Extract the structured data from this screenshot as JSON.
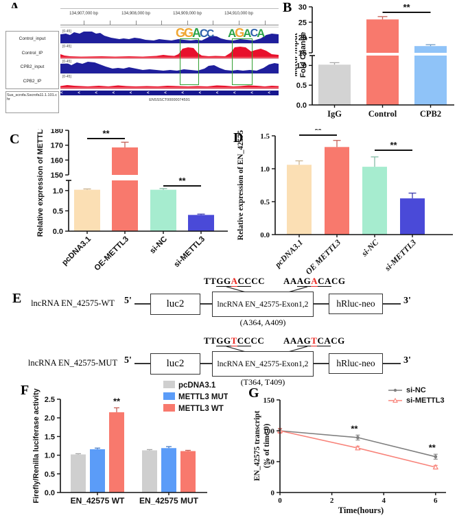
{
  "panels": {
    "a": "A",
    "b": "B",
    "c": "C",
    "d": "D",
    "e": "E",
    "f": "F",
    "g": "G"
  },
  "igv": {
    "ruler": [
      "134,907,000 bp",
      "134,908,000 bp",
      "134,909,000 bp",
      "134,910,000 bp"
    ],
    "tracks": [
      {
        "name": "Control_input",
        "range": "[0-45]",
        "color": "#1f1f9c"
      },
      {
        "name": "Control_IP",
        "range": "[0-45]",
        "color": "#e8102c"
      },
      {
        "name": "CPB2_input",
        "range": "[0-45]",
        "color": "#1f1f9c"
      },
      {
        "name": "CPB2_IP",
        "range": "[0-45]",
        "color": "#e8102c"
      }
    ],
    "genome_label": "Sus_scrofa.Sscrofa11.1.101.chr",
    "gene_id": "ENSSSCT00000074591",
    "logos": [
      {
        "letters": [
          {
            "ch": "G",
            "color": "#f0a733"
          },
          {
            "ch": "G",
            "color": "#f0a733"
          },
          {
            "ch": "A",
            "color": "#2ca349"
          },
          {
            "ch": "C",
            "color": "#2b5fa9"
          },
          {
            "ch": "C",
            "color": "#2b5fa9"
          }
        ]
      },
      {
        "letters": [
          {
            "ch": "A",
            "color": "#2ca349"
          },
          {
            "ch": "G",
            "color": "#f0a733"
          },
          {
            "ch": "A",
            "color": "#2ca349"
          },
          {
            "ch": "C",
            "color": "#2b5fa9"
          },
          {
            "ch": "A",
            "color": "#2ca349"
          }
        ]
      }
    ]
  },
  "chart_data": [
    {
      "id": "B",
      "type": "bar",
      "ylabel_lines": [
        "MeRIP/Input",
        "Fold Change"
      ],
      "categories": [
        "IgG",
        "Control",
        "CPB2"
      ],
      "values": [
        1.02,
        25.9,
        17.2
      ],
      "errors": [
        0.05,
        0.9,
        0.45
      ],
      "colors": [
        "#d3d3d3",
        "#f8796d",
        "#8fc3f8"
      ],
      "axis": {
        "segments": [
          {
            "range": [
              15,
              30
            ],
            "ticks": [
              "15",
              "20",
              "25",
              "30"
            ]
          },
          {
            "range": [
              0,
              1.25
            ],
            "ticks": [
              "0.0",
              "0.5",
              "1.0"
            ]
          }
        ]
      },
      "sig": [
        {
          "between": [
            "Control",
            "CPB2"
          ],
          "label": "**"
        }
      ]
    },
    {
      "id": "C",
      "type": "bar",
      "ylabel": "Relative expression of METTL3",
      "categories": [
        "pcDNA3.1",
        "OE-METTL3",
        "si-NC",
        "si-METTL3"
      ],
      "values": [
        1.02,
        168.5,
        1.02,
        0.4
      ],
      "errors": [
        0.02,
        3.5,
        0.03,
        0.02
      ],
      "colors": [
        "#fbdfb4",
        "#f8796d",
        "#a6eccf",
        "#4a4ad8"
      ],
      "axis": {
        "segments": [
          {
            "range": [
              150,
              180
            ],
            "ticks": [
              "150",
              "160",
              "170",
              "180"
            ]
          },
          {
            "range": [
              0,
              1.25
            ],
            "ticks": [
              "0.0",
              "0.5",
              "1.0"
            ]
          }
        ]
      },
      "sig": [
        {
          "between": [
            "pcDNA3.1",
            "OE-METTL3"
          ],
          "label": "**"
        },
        {
          "between": [
            "si-NC",
            "si-METTL3"
          ],
          "label": "**"
        }
      ]
    },
    {
      "id": "D",
      "type": "bar",
      "ylabel": "Relative expression of EN_42575",
      "categories": [
        "pcDNA3.1",
        "OE METTL3",
        "si-NC",
        "si-METTL3"
      ],
      "values": [
        1.06,
        1.33,
        1.03,
        0.55
      ],
      "errors": [
        0.06,
        0.1,
        0.15,
        0.08
      ],
      "colors": [
        "#fbdfb4",
        "#f8796d",
        "#a6eccf",
        "#4a4ad8"
      ],
      "axis": {
        "segments": [
          {
            "range": [
              0,
              1.5
            ],
            "ticks": [
              "0.0",
              "0.5",
              "1.0",
              "1.5"
            ]
          }
        ]
      },
      "sig": [
        {
          "between": [
            "pcDNA3.1",
            "OE METTL3"
          ],
          "label": "**"
        },
        {
          "between": [
            "si-NC",
            "si-METTL3"
          ],
          "label": "**"
        }
      ]
    },
    {
      "id": "F",
      "type": "bar",
      "ylabel": "Firefly/Renilla luciferase activity",
      "categories": [
        "EN_42575 WT",
        "EN_42575 MUT"
      ],
      "series": [
        {
          "name": "pcDNA3.1",
          "color": "#cfcfcf",
          "values": [
            1.02,
            1.13
          ],
          "errors": [
            0.02,
            0.02
          ]
        },
        {
          "name": "METTL3 MUT",
          "color": "#5b9cf8",
          "values": [
            1.16,
            1.19
          ],
          "errors": [
            0.03,
            0.04
          ]
        },
        {
          "name": "METTL3 WT",
          "color": "#f8796d",
          "values": [
            2.15,
            1.11
          ],
          "errors": [
            0.12,
            0.02
          ]
        }
      ],
      "axis": {
        "segments": [
          {
            "range": [
              0,
              2.5
            ],
            "ticks": [
              "0.0",
              "0.5",
              "1.0",
              "1.5",
              "2.0",
              "2.5"
            ]
          }
        ]
      },
      "sig": [
        {
          "category": "EN_42575 WT",
          "series": "METTL3 WT",
          "label": "**"
        }
      ],
      "legend_position": "top-right"
    },
    {
      "id": "G",
      "type": "line",
      "xlabel": "Time(hours)",
      "ylabel_lines": [
        "EN_42575 transcript",
        "(% of time 0)"
      ],
      "x": [
        0,
        3,
        6
      ],
      "xticks": [
        "0",
        "2",
        "4",
        "6"
      ],
      "yticks": [
        "0",
        "50",
        "100",
        "150"
      ],
      "ylim": [
        0,
        150
      ],
      "series": [
        {
          "name": "si-NC",
          "color": "#7f7f7f",
          "marker": "dot",
          "values": [
            100,
            89,
            58
          ],
          "errors": [
            3,
            4,
            4
          ]
        },
        {
          "name": "si-METTL3",
          "color": "#f8837a",
          "marker": "triangle",
          "values": [
            100,
            72,
            41
          ],
          "errors": [
            4,
            3,
            3
          ]
        }
      ],
      "annotations": [
        {
          "x": 3,
          "label": "**"
        },
        {
          "x": 6,
          "label": "**"
        }
      ],
      "legend_position": "top-right"
    }
  ],
  "panel_e": {
    "rows": [
      {
        "name": "lncRNA EN_42575-WT",
        "five_prime": "5'",
        "three_prime": "3'",
        "box1": "luc2",
        "box2": "lncRNA EN_42575-Exon1,2",
        "box3": "hRluc-neo",
        "site": "(A364, A409)",
        "motif1": [
          {
            "t": "TT"
          },
          {
            "t": "GG",
            "u": 1
          },
          {
            "t": "A",
            "u": 1,
            "r": 1
          },
          {
            "t": "CC",
            "u": 1
          },
          {
            "t": "CC"
          }
        ],
        "motif2": [
          {
            "t": "AA"
          },
          {
            "t": "AG",
            "u": 1
          },
          {
            "t": "A",
            "u": 1,
            "r": 1
          },
          {
            "t": "CA",
            "u": 1
          },
          {
            "t": "CG"
          }
        ]
      },
      {
        "name": "lncRNA EN_42575-MUT",
        "five_prime": "5'",
        "three_prime": "3'",
        "box1": "luc2",
        "box2": "lncRNA EN_42575-Exon1,2",
        "box3": "hRluc-neo",
        "site": "(T364, T409)",
        "motif1": [
          {
            "t": "TT"
          },
          {
            "t": "GG",
            "u": 1
          },
          {
            "t": "T",
            "u": 1,
            "r": 1
          },
          {
            "t": "CC",
            "u": 1
          },
          {
            "t": "CC"
          }
        ],
        "motif2": [
          {
            "t": "AA"
          },
          {
            "t": "AG",
            "u": 1
          },
          {
            "t": "T",
            "u": 1,
            "r": 1
          },
          {
            "t": "CA",
            "u": 1
          },
          {
            "t": "CG"
          }
        ]
      }
    ]
  }
}
